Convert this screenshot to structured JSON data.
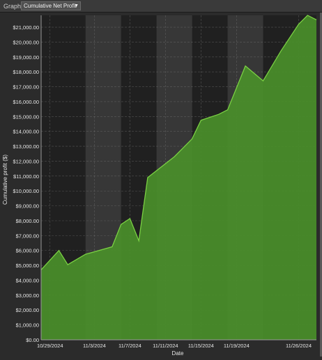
{
  "toolbar": {
    "graph_label": "Graph",
    "selected_graph": "Cumulative Net Profit",
    "dropdown_icon": "chevron-down-icon"
  },
  "colors": {
    "background": "#2b2b2b",
    "plot_dark": "#202020",
    "plot_light": "#373737",
    "area_fill": "#4a8f2a",
    "area_line": "#7ad043",
    "grid": "#7a7a7a",
    "text": "#e6e6e6"
  },
  "chart_data": {
    "type": "area",
    "xlabel": "Date",
    "ylabel": "Cumulative profit ($)",
    "ylim": [
      0,
      21800
    ],
    "xlim": [
      "2024-10-28",
      "2024-11-28"
    ],
    "y_ticks": [
      "$0.00",
      "$1,000.00",
      "$2,000.00",
      "$3,000.00",
      "$4,000.00",
      "$5,000.00",
      "$6,000.00",
      "$7,000.00",
      "$8,000.00",
      "$9,000.00",
      "$10,000.00",
      "$11,000.00",
      "$12,000.00",
      "$13,000.00",
      "$14,000.00",
      "$15,000.00",
      "$16,000.00",
      "$17,000.00",
      "$18,000.00",
      "$19,000.00",
      "$20,000.00",
      "$21,000.00"
    ],
    "x_ticks": [
      {
        "label": "10/29/2024",
        "date": "2024-10-29"
      },
      {
        "label": "11/3/2024",
        "date": "2024-11-03"
      },
      {
        "label": "11/7/2024",
        "date": "2024-11-07"
      },
      {
        "label": "11/11/2024",
        "date": "2024-11-11"
      },
      {
        "label": "11/15/2024",
        "date": "2024-11-15"
      },
      {
        "label": "11/19/2024",
        "date": "2024-11-19"
      },
      {
        "label": "11/26/2024",
        "date": "2024-11-26"
      }
    ],
    "grid": true,
    "series": [
      {
        "points": [
          {
            "date": "2024-10-28",
            "value": 4700
          },
          {
            "date": "2024-10-30",
            "value": 6000
          },
          {
            "date": "2024-10-31",
            "value": 5050
          },
          {
            "date": "2024-11-02",
            "value": 5750
          },
          {
            "date": "2024-11-05",
            "value": 6250
          },
          {
            "date": "2024-11-06",
            "value": 7750
          },
          {
            "date": "2024-11-07",
            "value": 8150
          },
          {
            "date": "2024-11-08",
            "value": 6650
          },
          {
            "date": "2024-11-09",
            "value": 10900
          },
          {
            "date": "2024-11-12",
            "value": 12300
          },
          {
            "date": "2024-11-14",
            "value": 13500
          },
          {
            "date": "2024-11-15",
            "value": 14750
          },
          {
            "date": "2024-11-17",
            "value": 15150
          },
          {
            "date": "2024-11-18",
            "value": 15450
          },
          {
            "date": "2024-11-20",
            "value": 18400
          },
          {
            "date": "2024-11-22",
            "value": 17400
          },
          {
            "date": "2024-11-24",
            "value": 19400
          },
          {
            "date": "2024-11-26",
            "value": 21200
          },
          {
            "date": "2024-11-27",
            "value": 21800
          },
          {
            "date": "2024-11-28",
            "value": 21500
          }
        ]
      }
    ]
  }
}
